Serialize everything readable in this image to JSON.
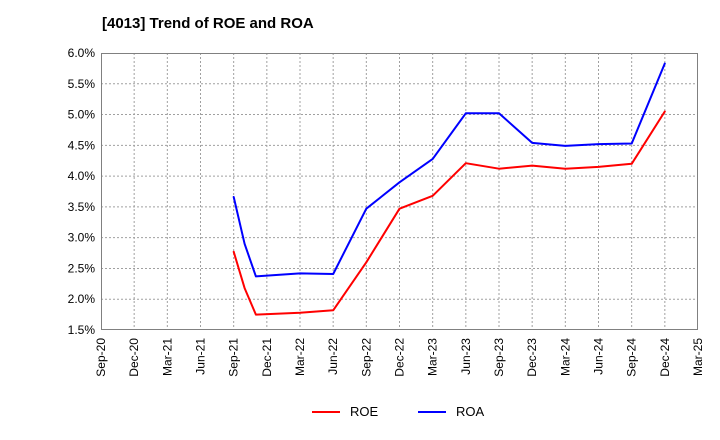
{
  "chart_data": {
    "type": "line",
    "title": "[4013]  Trend of ROE and ROA",
    "xlabel": "",
    "ylabel": "",
    "x_ticks": [
      "Sep-20",
      "Dec-20",
      "Mar-21",
      "Jun-21",
      "Sep-21",
      "Dec-21",
      "Mar-22",
      "Jun-22",
      "Sep-22",
      "Dec-22",
      "Mar-23",
      "Jun-23",
      "Sep-23",
      "Dec-23",
      "Mar-24",
      "Jun-24",
      "Sep-24",
      "Dec-24",
      "Mar-25"
    ],
    "y_ticks": [
      "1.5%",
      "2.0%",
      "2.5%",
      "3.0%",
      "3.5%",
      "4.0%",
      "4.5%",
      "5.0%",
      "5.5%",
      "6.0%"
    ],
    "ylim": [
      1.5,
      6.0
    ],
    "grid": true,
    "legend_position": "bottom-center",
    "series": [
      {
        "name": "ROE",
        "color": "#ff0000",
        "points": [
          {
            "x": 4.0,
            "y": 2.77
          },
          {
            "x": 4.33,
            "y": 2.18
          },
          {
            "x": 4.67,
            "y": 1.75
          },
          {
            "x": 6.0,
            "y": 1.78
          },
          {
            "x": 7.0,
            "y": 1.82
          },
          {
            "x": 8.0,
            "y": 2.6
          },
          {
            "x": 9.0,
            "y": 3.47
          },
          {
            "x": 10.0,
            "y": 3.68
          },
          {
            "x": 11.0,
            "y": 4.21
          },
          {
            "x": 12.0,
            "y": 4.12
          },
          {
            "x": 13.0,
            "y": 4.17
          },
          {
            "x": 14.0,
            "y": 4.12
          },
          {
            "x": 15.0,
            "y": 4.15
          },
          {
            "x": 16.0,
            "y": 4.2
          },
          {
            "x": 17.0,
            "y": 5.05
          }
        ]
      },
      {
        "name": "ROA",
        "color": "#0000ff",
        "points": [
          {
            "x": 4.0,
            "y": 3.66
          },
          {
            "x": 4.33,
            "y": 2.9
          },
          {
            "x": 4.67,
            "y": 2.37
          },
          {
            "x": 6.0,
            "y": 2.42
          },
          {
            "x": 7.0,
            "y": 2.41
          },
          {
            "x": 8.0,
            "y": 3.47
          },
          {
            "x": 9.0,
            "y": 3.9
          },
          {
            "x": 10.0,
            "y": 4.28
          },
          {
            "x": 11.0,
            "y": 5.02
          },
          {
            "x": 12.0,
            "y": 5.02
          },
          {
            "x": 13.0,
            "y": 4.54
          },
          {
            "x": 14.0,
            "y": 4.49
          },
          {
            "x": 15.0,
            "y": 4.52
          },
          {
            "x": 16.0,
            "y": 4.53
          },
          {
            "x": 17.0,
            "y": 5.83
          }
        ]
      }
    ]
  }
}
